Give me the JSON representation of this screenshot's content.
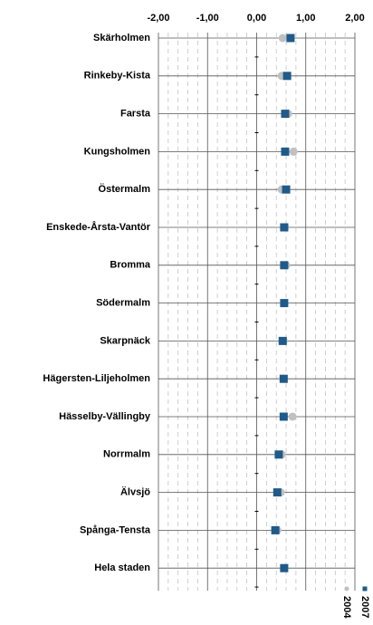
{
  "chart_data": {
    "type": "dot",
    "categories": [
      "Skärholmen",
      "Rinkeby-Kista",
      "Farsta",
      "Kungsholmen",
      "Östermalm",
      "Enskede-Årsta-Vantör",
      "Bromma",
      "Södermalm",
      "Skarpnäck",
      "Hägersten-Liljeholmen",
      "Hässelby-Vällingby",
      "Norrmalm",
      "Älvsjö",
      "Spånga-Tensta",
      "Hela staden"
    ],
    "series": [
      {
        "name": "2004",
        "color": "#c0c0c0",
        "marker": "circle",
        "values": [
          0.53,
          0.51,
          0.64,
          0.75,
          0.51,
          0.58,
          0.6,
          0.56,
          0.55,
          0.54,
          0.73,
          0.51,
          0.49,
          0.42,
          0.56
        ]
      },
      {
        "name": "2007",
        "color": "#1f5a8a",
        "marker": "square",
        "values": [
          0.69,
          0.62,
          0.58,
          0.58,
          0.6,
          0.56,
          0.56,
          0.56,
          0.53,
          0.55,
          0.55,
          0.45,
          0.42,
          0.38,
          0.56
        ]
      }
    ],
    "xlim": [
      -2,
      2
    ],
    "xticks": [
      {
        "value": -2,
        "label": "-2,00"
      },
      {
        "value": -1,
        "label": "-1,00"
      },
      {
        "value": 0,
        "label": "0,00"
      },
      {
        "value": 1,
        "label": "1,00"
      },
      {
        "value": 2,
        "label": "2,00"
      }
    ],
    "minor_xticks": [
      -1.8,
      -1.6,
      -1.4,
      -1.2,
      -0.8,
      -0.6,
      -0.4,
      -0.2,
      0.2,
      0.4,
      0.6,
      0.8,
      1.2,
      1.4,
      1.6,
      1.8
    ],
    "grid": true,
    "legend": "bottom-right"
  }
}
